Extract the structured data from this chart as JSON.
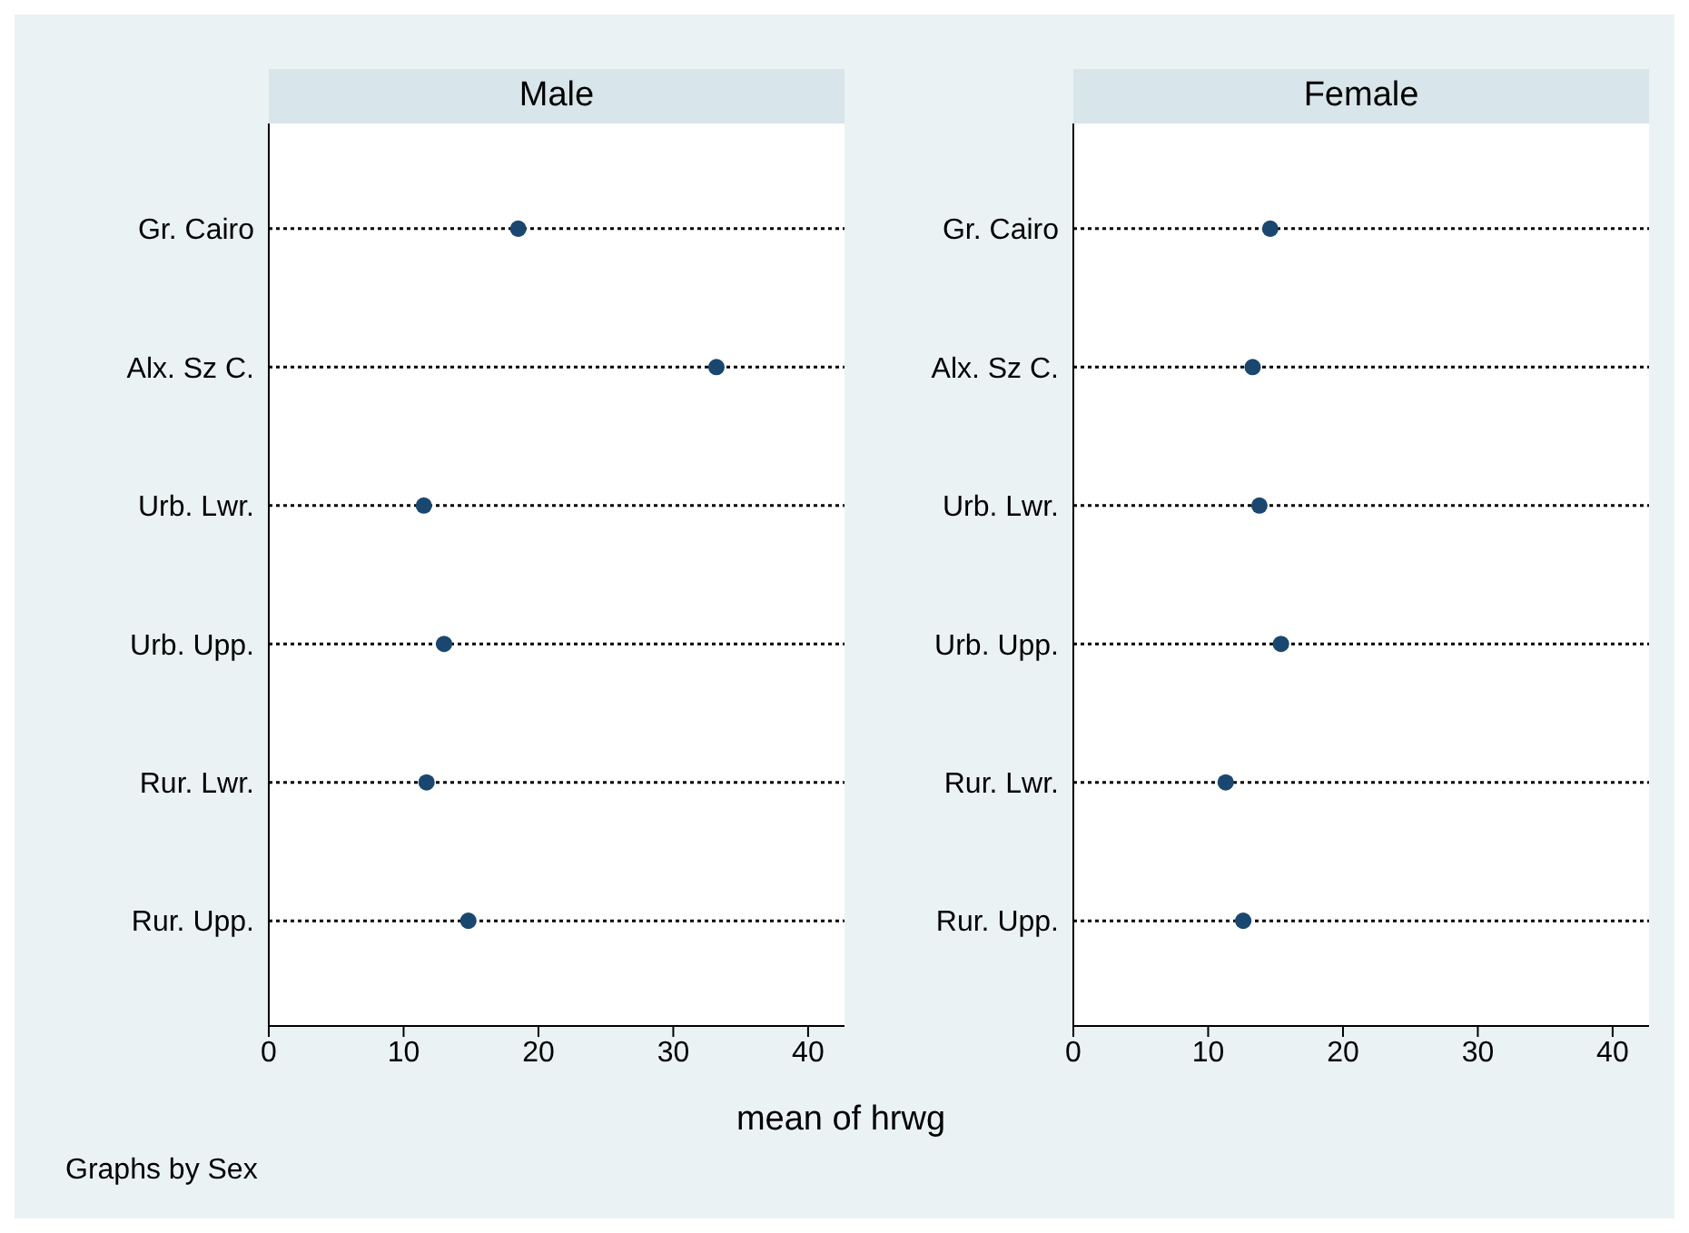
{
  "chart_data": [
    {
      "type": "scatter",
      "title": "Male",
      "orientation": "horizontal",
      "categories": [
        "Gr. Cairo",
        "Alx. Sz C.",
        "Urb. Lwr.",
        "Urb. Upp.",
        "Rur. Lwr.",
        "Rur. Upp."
      ],
      "values": [
        18.5,
        33.2,
        11.5,
        13.0,
        11.7,
        14.8
      ],
      "color": "#1a476f",
      "xlim": [
        0,
        42.7
      ],
      "xticks": [
        0,
        10,
        20,
        30,
        40
      ],
      "grid": "y",
      "marker": "circle",
      "xlabel": "mean of hrwg",
      "annotations": [
        "Graphs by Sex"
      ]
    },
    {
      "type": "scatter",
      "title": "Female",
      "orientation": "horizontal",
      "categories": [
        "Gr. Cairo",
        "Alx. Sz C.",
        "Urb. Lwr.",
        "Urb. Upp.",
        "Rur. Lwr.",
        "Rur. Upp."
      ],
      "values": [
        14.6,
        13.3,
        13.8,
        15.4,
        11.3,
        12.6
      ],
      "color": "#1a476f",
      "xlim": [
        0,
        42.7
      ],
      "xticks": [
        0,
        10,
        20,
        30,
        40
      ],
      "grid": "y",
      "marker": "circle"
    }
  ]
}
